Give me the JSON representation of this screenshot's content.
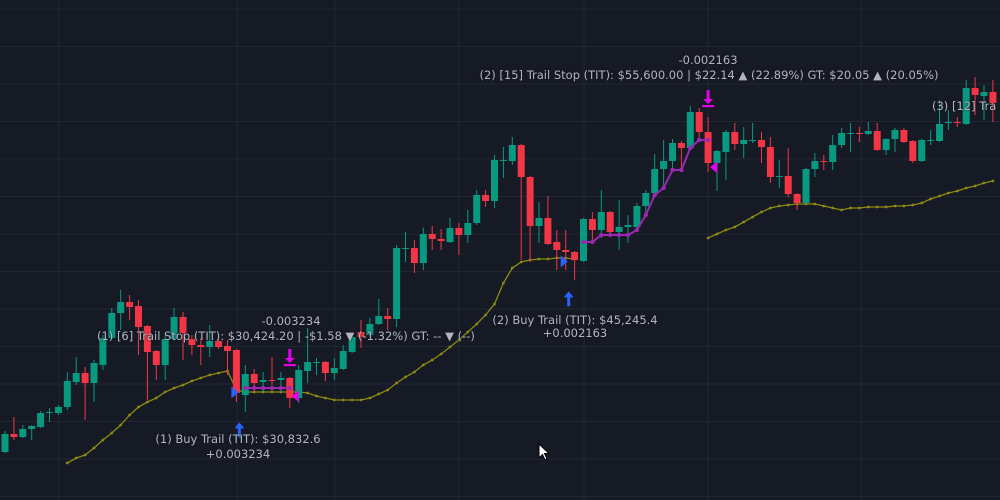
{
  "chart_data": {
    "type": "candlestick",
    "ylim": [
      19000,
      74000
    ],
    "grid": true,
    "colors": {
      "background": "#161a25",
      "grid": "#232733",
      "up": "#089981",
      "down": "#f23645",
      "indicator": "#8c8a12",
      "trail": "#9c27b0",
      "buy_marker": "#2962ff",
      "exit_marker": "#e400e8",
      "label": "#b2b5be"
    },
    "candles_ohlc": [
      [
        24280,
        26590,
        24170,
        26260
      ],
      [
        26260,
        28130,
        25600,
        25930
      ],
      [
        25930,
        27250,
        25820,
        26810
      ],
      [
        26810,
        27250,
        25600,
        27140
      ],
      [
        27030,
        28790,
        26920,
        28570
      ],
      [
        28570,
        29120,
        27580,
        28680
      ],
      [
        28570,
        29450,
        28350,
        29230
      ],
      [
        29230,
        33080,
        28900,
        32090
      ],
      [
        31980,
        34730,
        31650,
        32970
      ],
      [
        32970,
        33630,
        27800,
        31870
      ],
      [
        31870,
        34400,
        29780,
        34070
      ],
      [
        33850,
        37150,
        33300,
        36820
      ],
      [
        36820,
        40120,
        36600,
        39570
      ],
      [
        39570,
        42100,
        37700,
        40780
      ],
      [
        40780,
        41550,
        38800,
        40230
      ],
      [
        40340,
        41000,
        34950,
        38030
      ],
      [
        38140,
        38250,
        30000,
        35280
      ],
      [
        35390,
        35500,
        32200,
        33850
      ],
      [
        33850,
        37150,
        32200,
        36710
      ],
      [
        36710,
        40120,
        36600,
        39130
      ],
      [
        39130,
        39680,
        34400,
        37370
      ],
      [
        36710,
        37150,
        34950,
        36050
      ],
      [
        36050,
        36820,
        33850,
        35830
      ],
      [
        35830,
        38250,
        34730,
        36490
      ],
      [
        36490,
        37040,
        35610,
        35830
      ],
      [
        35940,
        36600,
        32750,
        35390
      ],
      [
        35500,
        35610,
        29780,
        30770
      ],
      [
        30550,
        33850,
        28680,
        32860
      ],
      [
        32860,
        33410,
        30880,
        31870
      ],
      [
        31980,
        33080,
        30880,
        32200
      ],
      [
        32200,
        34730,
        31650,
        32090
      ],
      [
        32200,
        33080,
        30880,
        32420
      ],
      [
        32420,
        32530,
        29120,
        30220
      ],
      [
        30220,
        33850,
        29670,
        33300
      ],
      [
        33190,
        37920,
        31870,
        34180
      ],
      [
        34070,
        34620,
        32750,
        34180
      ],
      [
        34180,
        34290,
        32090,
        32970
      ],
      [
        32970,
        34620,
        32200,
        33520
      ],
      [
        33410,
        36050,
        33300,
        35390
      ],
      [
        35280,
        37150,
        35170,
        36930
      ],
      [
        37480,
        38800,
        35720,
        36930
      ],
      [
        37150,
        39020,
        37040,
        38360
      ],
      [
        38360,
        41110,
        38250,
        39240
      ],
      [
        39240,
        40120,
        37700,
        38910
      ],
      [
        38910,
        47050,
        38030,
        46720
      ],
      [
        46610,
        48480,
        45180,
        46720
      ],
      [
        46720,
        47600,
        43970,
        45070
      ],
      [
        45070,
        48970,
        44300,
        48260
      ],
      [
        48260,
        49140,
        46500,
        47710
      ],
      [
        47710,
        48810,
        46500,
        47490
      ],
      [
        47380,
        50020,
        47270,
        48920
      ],
      [
        48920,
        49470,
        45950,
        48150
      ],
      [
        48150,
        50900,
        47270,
        49470
      ],
      [
        49470,
        53100,
        49250,
        52550
      ],
      [
        52550,
        53100,
        51230,
        51890
      ],
      [
        51890,
        56950,
        51120,
        56400
      ],
      [
        56290,
        57830,
        54420,
        56400
      ],
      [
        56290,
        58930,
        55850,
        58050
      ],
      [
        58050,
        58160,
        45400,
        54530
      ],
      [
        54530,
        54640,
        45180,
        49140
      ],
      [
        49140,
        51780,
        47270,
        50020
      ],
      [
        50020,
        52440,
        47050,
        47160
      ],
      [
        47380,
        48700,
        44300,
        46500
      ],
      [
        46500,
        48700,
        44300,
        46280
      ],
      [
        46280,
        46390,
        43200,
        45400
      ],
      [
        45290,
        50020,
        45180,
        49910
      ],
      [
        49910,
        50680,
        47600,
        48700
      ],
      [
        48700,
        53100,
        47820,
        50680
      ],
      [
        50680,
        50790,
        47930,
        48480
      ],
      [
        48480,
        52000,
        46500,
        49030
      ],
      [
        49030,
        50350,
        47270,
        49250
      ],
      [
        49030,
        51670,
        48920,
        51340
      ],
      [
        51340,
        53100,
        50240,
        52770
      ],
      [
        52770,
        57060,
        52330,
        55410
      ],
      [
        55410,
        58600,
        53430,
        56290
      ],
      [
        56290,
        58710,
        55300,
        58270
      ],
      [
        58270,
        58490,
        55300,
        57720
      ],
      [
        57720,
        62340,
        57610,
        61680
      ],
      [
        61680,
        62120,
        58600,
        59480
      ],
      [
        59480,
        61130,
        55080,
        56070
      ],
      [
        56070,
        57500,
        52990,
        57390
      ],
      [
        57280,
        59700,
        54200,
        59480
      ],
      [
        59480,
        60470,
        57500,
        58160
      ],
      [
        58160,
        60030,
        56620,
        58600
      ],
      [
        58490,
        60470,
        58270,
        58600
      ],
      [
        58600,
        59480,
        56070,
        57830
      ],
      [
        57830,
        58930,
        53870,
        54530
      ],
      [
        54530,
        56400,
        53320,
        54640
      ],
      [
        54640,
        57720,
        52330,
        52660
      ],
      [
        52660,
        52770,
        50900,
        51670
      ],
      [
        51670,
        55520,
        51560,
        55410
      ],
      [
        55410,
        57170,
        54530,
        56290
      ],
      [
        56290,
        56950,
        55300,
        56180
      ],
      [
        56180,
        59150,
        55300,
        58050
      ],
      [
        58050,
        59920,
        57720,
        59370
      ],
      [
        59260,
        60470,
        57280,
        59370
      ],
      [
        59370,
        60030,
        58380,
        59260
      ],
      [
        59260,
        60580,
        59150,
        59590
      ],
      [
        59590,
        60470,
        57390,
        57500
      ],
      [
        57500,
        58820,
        56950,
        58710
      ],
      [
        58710,
        59920,
        57280,
        59700
      ],
      [
        59700,
        59920,
        58270,
        58380
      ],
      [
        58490,
        58600,
        56070,
        56290
      ],
      [
        56290,
        58710,
        56180,
        58600
      ],
      [
        58490,
        59700,
        58050,
        58600
      ],
      [
        58490,
        63000,
        58380,
        60360
      ],
      [
        60470,
        61900,
        59700,
        60580
      ],
      [
        60580,
        61130,
        60030,
        60470
      ],
      [
        60360,
        65200,
        60250,
        64320
      ],
      [
        64320,
        65530,
        61350,
        63550
      ],
      [
        63440,
        64650,
        60800,
        63880
      ],
      [
        63880,
        65200,
        60580,
        62670
      ]
    ],
    "indicator_line": [
      {
        "start_index": 7,
        "values": [
          23070,
          23620,
          23950,
          24720,
          25600,
          26370,
          27250,
          28350,
          29230,
          29780,
          30220,
          30880,
          31320,
          31650,
          32090,
          32420,
          32750,
          32970,
          33190,
          31100,
          30880,
          30880,
          30880,
          30880,
          30880,
          30880,
          30880,
          30770,
          30440,
          30220,
          30000,
          30000,
          30000,
          30000,
          30220,
          30660,
          31100,
          31870,
          32530,
          33080,
          33850,
          34400,
          35060,
          35830,
          36600,
          37480,
          38360,
          39350,
          40560,
          42870,
          44520,
          45180,
          45400,
          45510,
          45510,
          45620,
          45620,
          45510
        ]
      },
      {
        "start_index": 79,
        "values": [
          47820,
          48260,
          48700,
          49030,
          49580,
          50130,
          50680,
          51120,
          51340,
          51450,
          51560,
          51560,
          51560,
          51340,
          51120,
          50900,
          51120,
          51120,
          51230,
          51230,
          51230,
          51340,
          51340,
          51450,
          51670,
          52110,
          52440,
          52770,
          52990,
          53320,
          53540,
          53870,
          54090
        ]
      }
    ],
    "trail_stops": [
      {
        "start_index": 27,
        "values": [
          31320,
          31320,
          31320,
          31320,
          31320,
          31320
        ]
      },
      {
        "start_index": 65,
        "values": [
          47380,
          47380,
          48150,
          48150,
          48150,
          48150,
          48700,
          50350,
          52550,
          53320,
          55300,
          55300,
          57720,
          58600,
          58600
        ]
      }
    ],
    "trades": [
      {
        "entry_index": 26,
        "entry_price": 30832.6,
        "exit_index": 32,
        "exit_price": 30424.2,
        "buy_label": "(1) Buy Trail (TIT): $30,832.6",
        "buy_qty": "+0.003234",
        "stop_label": "(1) [6] Trail Stop (TIT): $30,424.20 | -$1.58 ▼ (-1.32%) GT: -- ▼ (--)",
        "stop_qty": "-0.003234"
      },
      {
        "entry_index": 63,
        "entry_price": 45245.4,
        "exit_index": 79,
        "exit_price": 55600.0,
        "buy_label": "(2) Buy Trail (TIT): $45,245.4",
        "buy_qty": "+0.002163",
        "stop_label": "(2) [15] Trail Stop (TIT): $55,600.00 | $22.14 ▲ (22.89%) GT: $20.05 ▲ (20.05%)",
        "stop_qty": "-0.002163"
      },
      {
        "stop_label_partial": "(3) [12] Tra"
      }
    ]
  }
}
